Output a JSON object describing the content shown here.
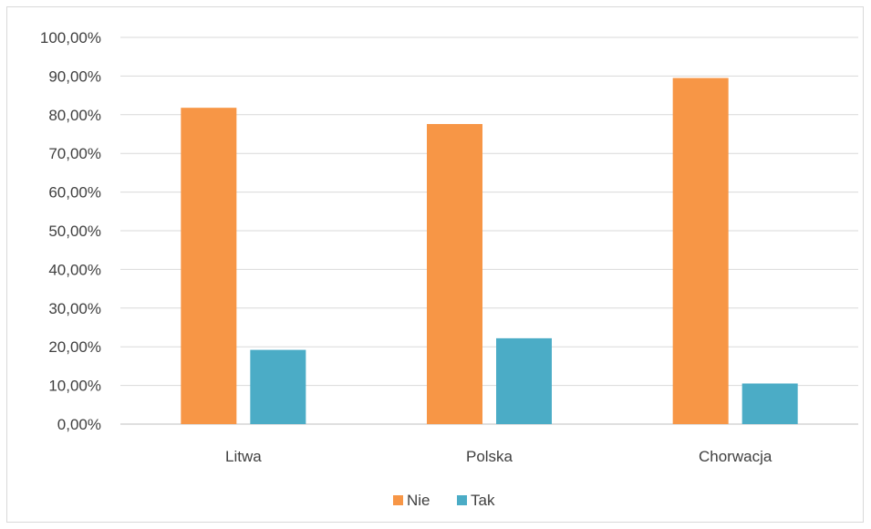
{
  "chart_data": {
    "type": "bar",
    "title": "",
    "xlabel": "",
    "ylabel": "",
    "categories": [
      "Litwa",
      "Polska",
      "Chorwacja"
    ],
    "series": [
      {
        "name": "Nie",
        "color": "#F79646",
        "values": [
          81.8,
          77.6,
          89.5
        ]
      },
      {
        "name": "Tak",
        "color": "#4BACC6",
        "values": [
          19.2,
          22.2,
          10.5
        ]
      }
    ],
    "ylim": [
      0,
      100
    ],
    "ytick_values": [
      0,
      10,
      20,
      30,
      40,
      50,
      60,
      70,
      80,
      90,
      100
    ],
    "ytick_labels": [
      "0,00%",
      "10,00%",
      "20,00%",
      "30,00%",
      "40,00%",
      "50,00%",
      "60,00%",
      "70,00%",
      "80,00%",
      "90,00%",
      "100,00%"
    ],
    "grid": true,
    "legend_position": "bottom"
  }
}
